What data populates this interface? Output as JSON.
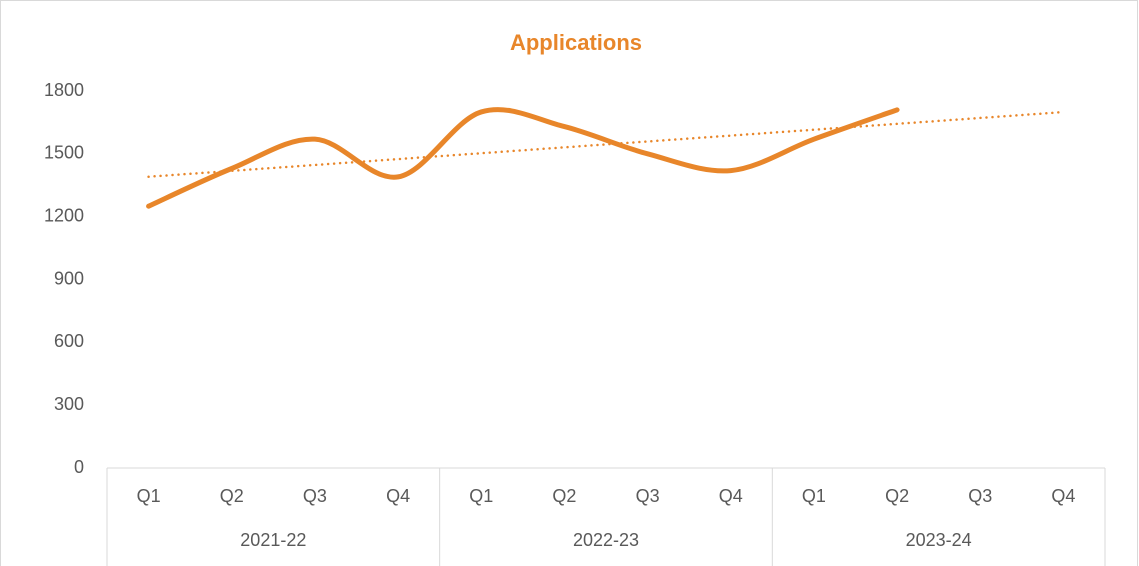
{
  "chart_data": {
    "type": "line",
    "title": "Applications",
    "categories": [
      "Q1",
      "Q2",
      "Q3",
      "Q4",
      "Q1",
      "Q2",
      "Q3",
      "Q4",
      "Q1",
      "Q2",
      "Q3",
      "Q4"
    ],
    "groups": [
      "2021-22",
      "2022-23",
      "2023-24"
    ],
    "series": [
      {
        "name": "Applications",
        "color": "#e8862a",
        "values": [
          1250,
          1430,
          1570,
          1390,
          1700,
          1630,
          1500,
          1420,
          1570,
          1710,
          null,
          null
        ]
      }
    ],
    "smooth": true,
    "trendline": "linear",
    "ylim": [
      0,
      1800
    ],
    "yticks": [
      0,
      300,
      600,
      900,
      1200,
      1500,
      1800
    ],
    "grid": false
  }
}
